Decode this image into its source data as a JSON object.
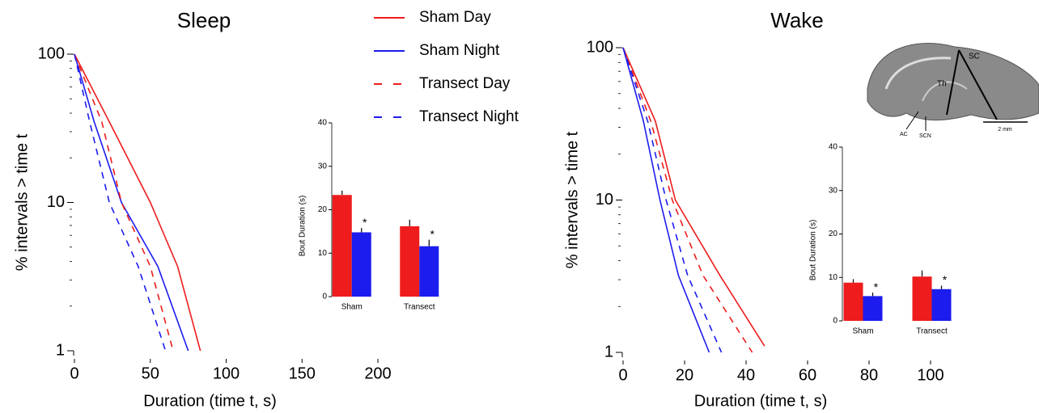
{
  "chart_data": [
    {
      "type": "line",
      "title": "Sleep",
      "xlabel": "Duration (time t, s)",
      "ylabel": "% intervals > time t",
      "log_y": true,
      "xlim": [
        0,
        200
      ],
      "ylim": [
        1,
        100
      ],
      "xticks": [
        0,
        50,
        100,
        150,
        200
      ],
      "yticks": [
        1,
        10,
        100
      ],
      "legend": "top-right",
      "series": [
        {
          "name": "Sham Day",
          "color": "#ee1c1c",
          "dash": false,
          "x": [
            0,
            23,
            50,
            68,
            83
          ],
          "values": [
            100,
            35,
            10,
            3.7,
            1
          ]
        },
        {
          "name": "Sham Night",
          "color": "#1c1cee",
          "dash": false,
          "x": [
            0,
            13,
            31,
            55,
            75
          ],
          "values": [
            100,
            35,
            10,
            3.7,
            1
          ]
        },
        {
          "name": "Transect Day",
          "color": "#ee1c1c",
          "dash": true,
          "x": [
            0,
            18,
            31,
            50,
            65
          ],
          "values": [
            100,
            35,
            10,
            3.7,
            1
          ]
        },
        {
          "name": "Transect Night",
          "color": "#1c1cee",
          "dash": true,
          "x": [
            0,
            10,
            23,
            42,
            60
          ],
          "values": [
            100,
            35,
            10,
            3.7,
            1
          ]
        }
      ]
    },
    {
      "type": "bar",
      "ylabel": "Bout Duration (s)",
      "categories": [
        "Sham",
        "Transect"
      ],
      "ylim": [
        0,
        40
      ],
      "yticks": [
        0,
        10,
        20,
        30,
        40
      ],
      "series": [
        {
          "color": "#ee1c1c",
          "values": [
            23.4,
            16.2
          ],
          "errors": [
            1.0,
            1.5
          ]
        },
        {
          "color": "#1c1cee",
          "values": [
            14.8,
            11.6
          ],
          "errors": [
            1.0,
            1.5
          ],
          "annotations": [
            "*",
            "*"
          ]
        }
      ]
    },
    {
      "type": "line",
      "title": "Wake",
      "xlabel": "Duration (time t, s)",
      "ylabel": "% intervals > time t",
      "log_y": true,
      "xlim": [
        0,
        100
      ],
      "ylim": [
        1,
        100
      ],
      "xticks": [
        0,
        20,
        40,
        60,
        80,
        100
      ],
      "yticks": [
        1,
        10,
        100
      ],
      "series": [
        {
          "color": "#ee1c1c",
          "dash": false,
          "x": [
            0,
            10.5,
            17,
            31.5,
            46
          ],
          "values": [
            100,
            33,
            10,
            3.2,
            1.1
          ]
        },
        {
          "color": "#1c1cee",
          "dash": false,
          "x": [
            0,
            6.6,
            12,
            18,
            28
          ],
          "values": [
            100,
            33,
            10,
            3.2,
            1
          ]
        },
        {
          "color": "#ee1c1c",
          "dash": true,
          "x": [
            0,
            9,
            16,
            26,
            42
          ],
          "values": [
            100,
            33,
            10,
            3.2,
            1
          ]
        },
        {
          "color": "#1c1cee",
          "dash": true,
          "x": [
            0,
            8,
            14,
            21,
            32
          ],
          "values": [
            100,
            33,
            10,
            3.2,
            1
          ]
        }
      ]
    },
    {
      "type": "bar",
      "ylabel": "Bout Duration (s)",
      "categories": [
        "Sham",
        "Transect"
      ],
      "ylim": [
        0,
        40
      ],
      "yticks": [
        0,
        10,
        20,
        30,
        40
      ],
      "series": [
        {
          "color": "#ee1c1c",
          "values": [
            8.8,
            10.2
          ],
          "errors": [
            0.8,
            1.4
          ]
        },
        {
          "color": "#1c1cee",
          "values": [
            5.7,
            7.3
          ],
          "errors": [
            0.8,
            0.8
          ],
          "annotations": [
            "*",
            "*"
          ]
        }
      ]
    }
  ],
  "brain_image": {
    "labels": [
      "SC",
      "Th",
      "AC",
      "SCN"
    ],
    "scale_bar": "2 mm"
  }
}
